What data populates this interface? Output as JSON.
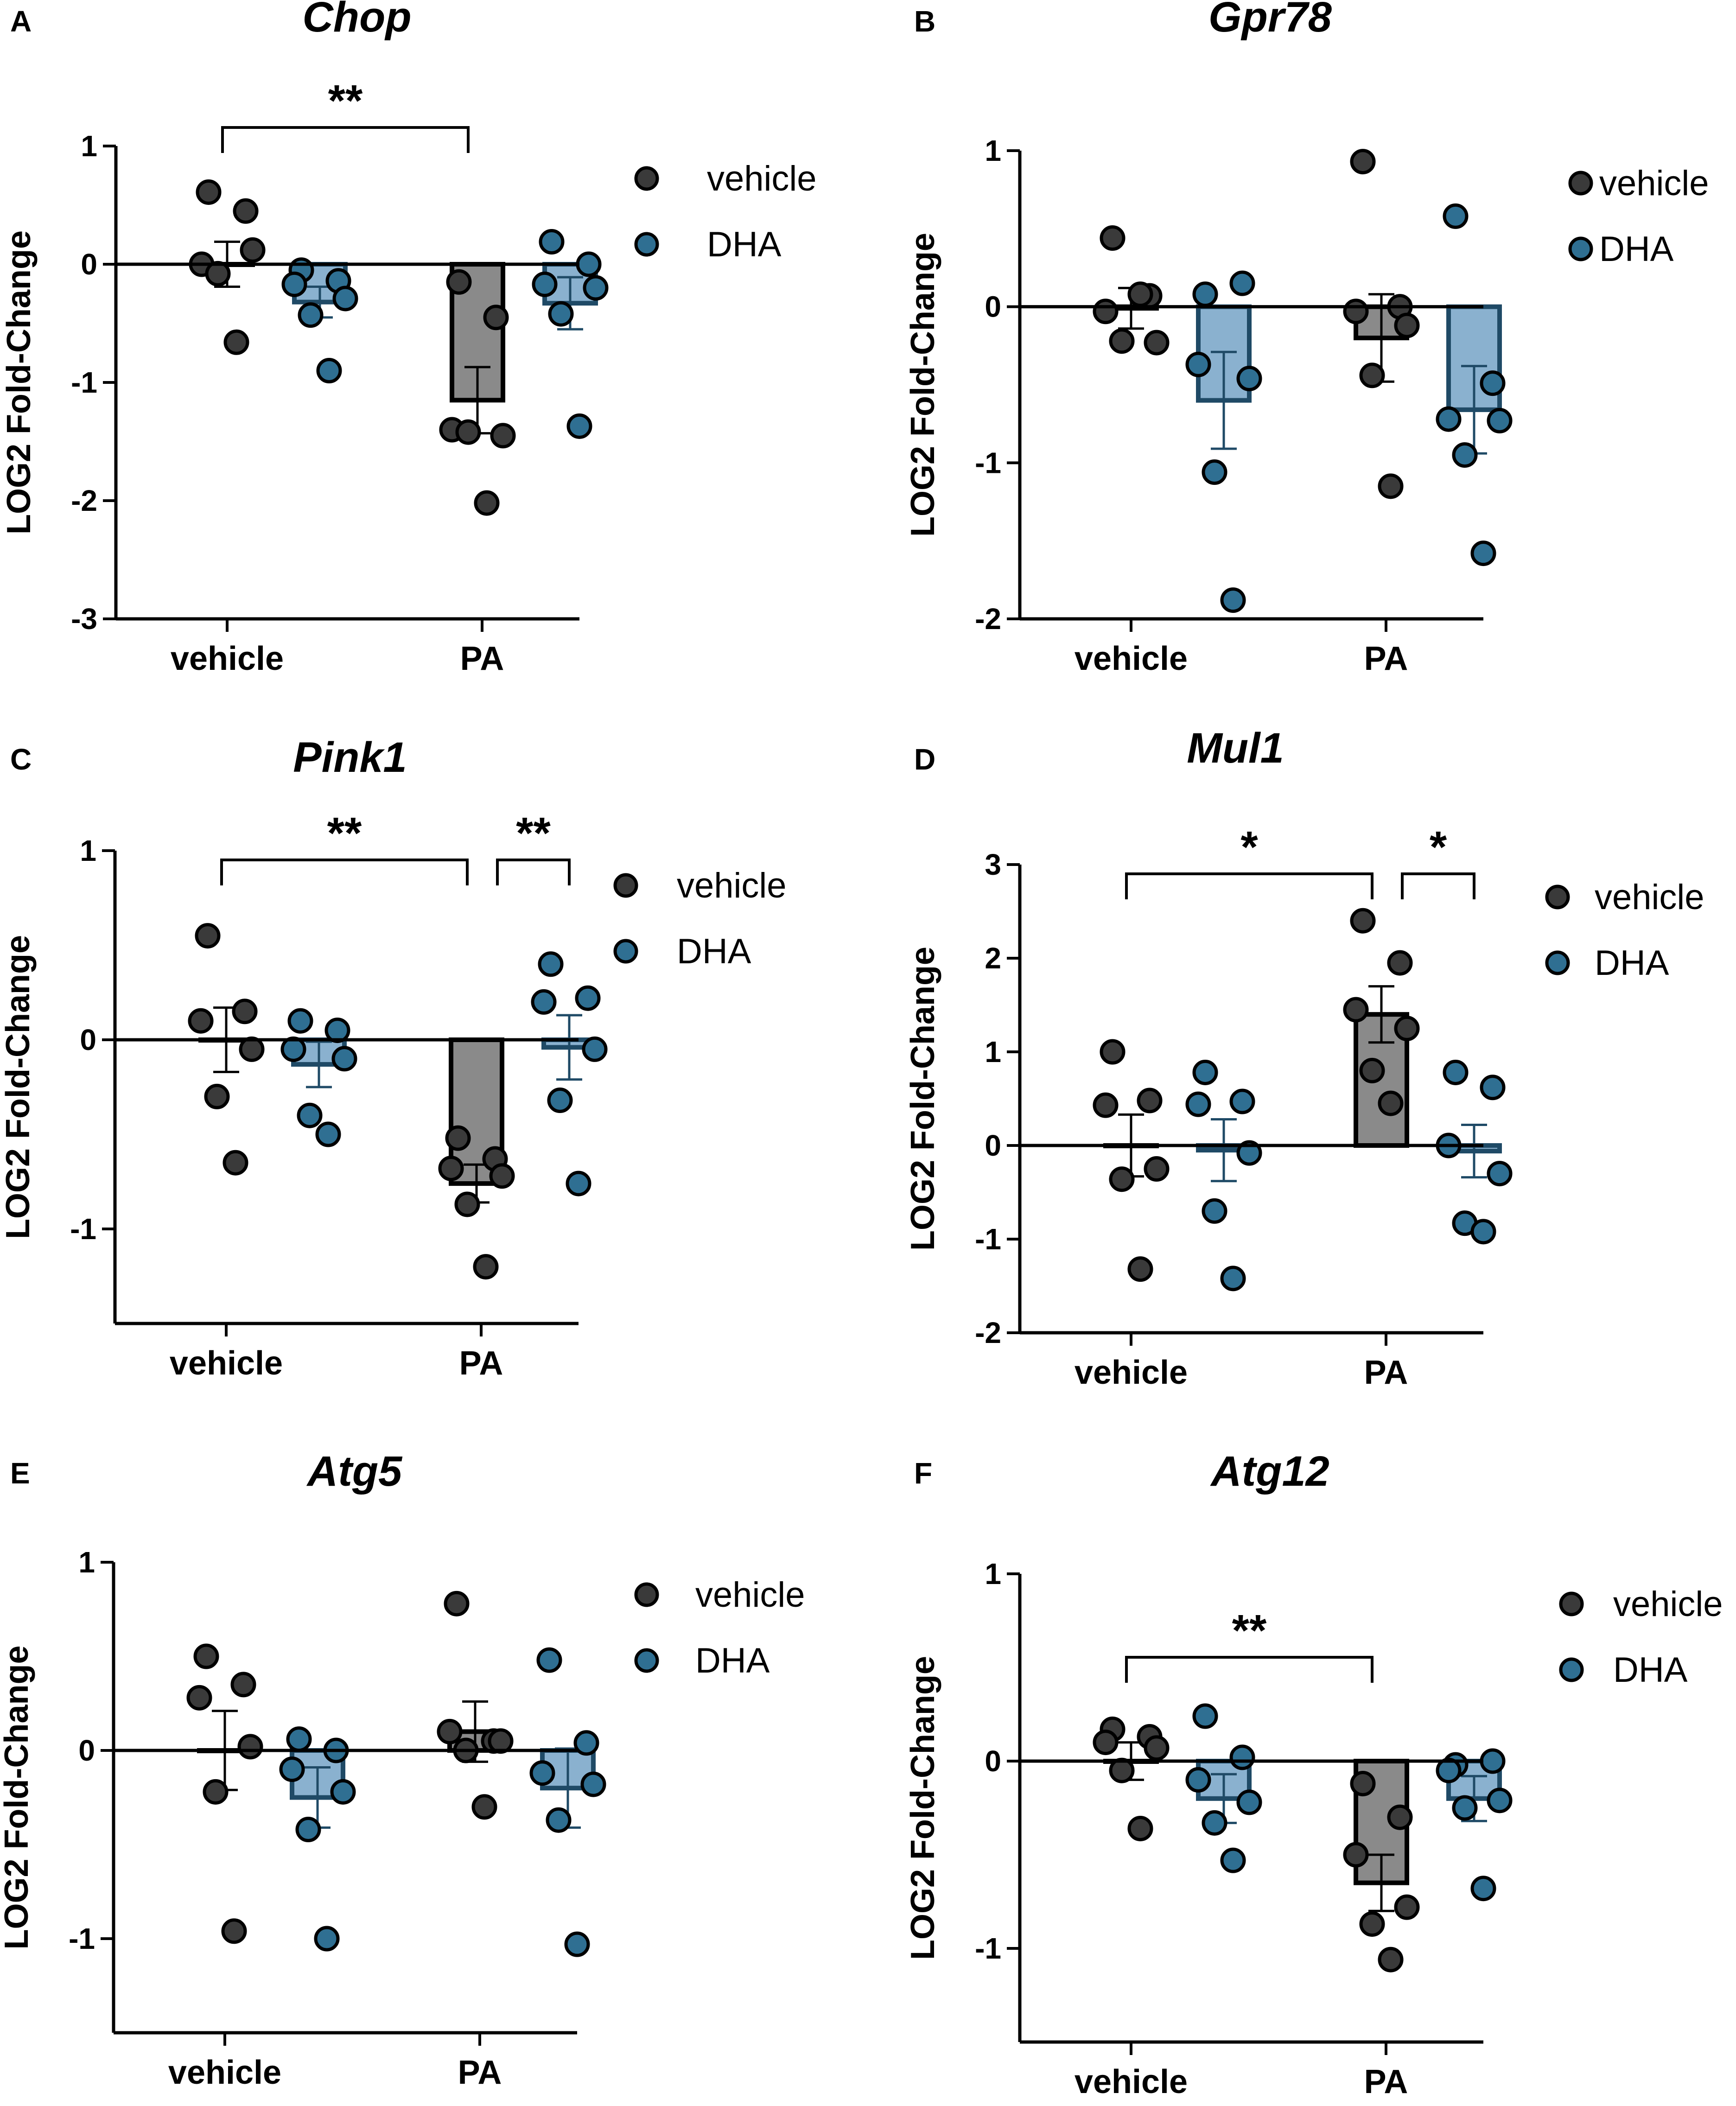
{
  "chart_data": [
    {
      "panel": "A",
      "title": "Chop",
      "type": "bar",
      "ylabel": "LOG2 Fold-Change",
      "ylim": [
        -3,
        1
      ],
      "ticks": [
        1,
        0,
        -1,
        -2,
        -3
      ],
      "categories": [
        "vehicle",
        "PA"
      ],
      "legend": [
        "vehicle",
        "DHA"
      ],
      "groups": [
        {
          "category": "vehicle",
          "treatment": "vehicle",
          "mean": 0.0,
          "sem": 0.19,
          "points": [
            0.61,
            0.45,
            0.0,
            0.12,
            -0.08,
            -0.66
          ]
        },
        {
          "category": "vehicle",
          "treatment": "DHA",
          "mean": -0.32,
          "sem": 0.13,
          "points": [
            -0.05,
            -0.14,
            -0.17,
            -0.29,
            -0.43,
            -0.9
          ]
        },
        {
          "category": "PA",
          "treatment": "vehicle",
          "mean": -1.15,
          "sem": 0.28,
          "points": [
            -0.15,
            -0.45,
            -1.4,
            -1.45,
            -1.42,
            -2.02
          ]
        },
        {
          "category": "PA",
          "treatment": "DHA",
          "mean": -0.33,
          "sem": 0.22,
          "points": [
            0.19,
            0.0,
            -0.17,
            -0.2,
            -0.42,
            -1.37
          ]
        }
      ],
      "significance": [
        {
          "label": "**",
          "from": 0,
          "to": 2
        }
      ]
    },
    {
      "panel": "B",
      "title": "Gpr78",
      "type": "bar",
      "ylabel": "LOG2 Fold-Change",
      "ylim": [
        -2,
        1
      ],
      "ticks": [
        1,
        0,
        -1,
        -2
      ],
      "categories": [
        "vehicle",
        "PA"
      ],
      "legend": [
        "vehicle",
        "DHA"
      ],
      "groups": [
        {
          "category": "vehicle",
          "treatment": "vehicle",
          "mean": -0.01,
          "sem": 0.13,
          "points": [
            0.44,
            0.07,
            -0.03,
            -0.23,
            -0.22,
            0.08
          ]
        },
        {
          "category": "vehicle",
          "treatment": "DHA",
          "mean": -0.6,
          "sem": 0.31,
          "points": [
            0.08,
            0.15,
            -0.37,
            -0.46,
            -1.06,
            -1.88
          ]
        },
        {
          "category": "PA",
          "treatment": "vehicle",
          "mean": -0.2,
          "sem": 0.28,
          "points": [
            0.93,
            0.0,
            -0.03,
            -0.12,
            -0.44,
            -1.15
          ]
        },
        {
          "category": "PA",
          "treatment": "DHA",
          "mean": -0.66,
          "sem": 0.28,
          "points": [
            0.58,
            -0.49,
            -0.72,
            -0.73,
            -0.95,
            -1.58
          ]
        }
      ],
      "significance": []
    },
    {
      "panel": "C",
      "title": "Pink1",
      "type": "bar",
      "ylabel": "LOG2 Fold-Change",
      "ylim": [
        -1.5,
        1
      ],
      "ticks": [
        1,
        0,
        -1
      ],
      "categories": [
        "vehicle",
        "PA"
      ],
      "legend": [
        "vehicle",
        "DHA"
      ],
      "groups": [
        {
          "category": "vehicle",
          "treatment": "vehicle",
          "mean": 0.0,
          "sem": 0.17,
          "points": [
            0.55,
            0.15,
            0.1,
            -0.05,
            -0.3,
            -0.65
          ]
        },
        {
          "category": "vehicle",
          "treatment": "DHA",
          "mean": -0.13,
          "sem": 0.12,
          "points": [
            0.1,
            0.05,
            -0.05,
            -0.1,
            -0.4,
            -0.5
          ]
        },
        {
          "category": "PA",
          "treatment": "vehicle",
          "mean": -0.76,
          "sem": 0.1,
          "points": [
            -0.52,
            -0.63,
            -0.68,
            -0.72,
            -0.87,
            -1.2
          ]
        },
        {
          "category": "PA",
          "treatment": "DHA",
          "mean": -0.04,
          "sem": 0.17,
          "points": [
            0.4,
            0.22,
            0.2,
            -0.05,
            -0.32,
            -0.76
          ]
        }
      ],
      "significance": [
        {
          "label": "**",
          "from": 0,
          "to": 2
        },
        {
          "label": "**",
          "from": 2,
          "to": 3
        }
      ]
    },
    {
      "panel": "D",
      "title": "Mul1",
      "type": "bar",
      "ylabel": "LOG2 Fold-Change",
      "ylim": [
        -2,
        3
      ],
      "ticks": [
        3,
        2,
        1,
        0,
        -1,
        -2
      ],
      "categories": [
        "vehicle",
        "PA"
      ],
      "legend": [
        "vehicle",
        "DHA"
      ],
      "groups": [
        {
          "category": "vehicle",
          "treatment": "vehicle",
          "mean": 0.0,
          "sem": 0.33,
          "points": [
            1.0,
            0.48,
            0.43,
            -0.25,
            -0.36,
            -1.32
          ]
        },
        {
          "category": "vehicle",
          "treatment": "DHA",
          "mean": -0.05,
          "sem": 0.33,
          "points": [
            0.78,
            0.47,
            0.44,
            -0.08,
            -0.7,
            -1.42
          ]
        },
        {
          "category": "PA",
          "treatment": "vehicle",
          "mean": 1.4,
          "sem": 0.3,
          "points": [
            2.4,
            1.95,
            1.45,
            1.25,
            0.8,
            0.45
          ]
        },
        {
          "category": "PA",
          "treatment": "DHA",
          "mean": -0.06,
          "sem": 0.28,
          "points": [
            0.78,
            0.62,
            0.0,
            -0.3,
            -0.83,
            -0.92
          ]
        }
      ],
      "significance": [
        {
          "label": "*",
          "from": 0,
          "to": 2
        },
        {
          "label": "*",
          "from": 2,
          "to": 3
        }
      ]
    },
    {
      "panel": "E",
      "title": "Atg5",
      "type": "bar",
      "ylabel": "LOG2 Fold-Change",
      "ylim": [
        -1.5,
        1
      ],
      "ticks": [
        1,
        0,
        -1
      ],
      "categories": [
        "vehicle",
        "PA"
      ],
      "legend": [
        "vehicle",
        "DHA"
      ],
      "groups": [
        {
          "category": "vehicle",
          "treatment": "vehicle",
          "mean": 0.0,
          "sem": 0.21,
          "points": [
            0.5,
            0.35,
            0.28,
            0.02,
            -0.22,
            -0.96
          ]
        },
        {
          "category": "vehicle",
          "treatment": "DHA",
          "mean": -0.25,
          "sem": 0.16,
          "points": [
            0.06,
            0.0,
            -0.1,
            -0.22,
            -0.42,
            -1.0
          ]
        },
        {
          "category": "PA",
          "treatment": "vehicle",
          "mean": 0.1,
          "sem": 0.16,
          "points": [
            0.78,
            0.05,
            0.1,
            0.05,
            0.0,
            -0.3
          ]
        },
        {
          "category": "PA",
          "treatment": "DHA",
          "mean": -0.2,
          "sem": 0.21,
          "points": [
            0.48,
            0.04,
            -0.12,
            -0.18,
            -0.37,
            -1.03
          ]
        }
      ],
      "significance": []
    },
    {
      "panel": "F",
      "title": "Atg12",
      "type": "bar",
      "ylabel": "LOG2 Fold-Change",
      "ylim": [
        -1.5,
        1
      ],
      "ticks": [
        1,
        0,
        -1
      ],
      "categories": [
        "vehicle",
        "PA"
      ],
      "legend": [
        "vehicle",
        "DHA"
      ],
      "groups": [
        {
          "category": "vehicle",
          "treatment": "vehicle",
          "mean": 0.0,
          "sem": 0.1,
          "points": [
            0.17,
            0.13,
            0.1,
            0.07,
            -0.05,
            -0.36
          ]
        },
        {
          "category": "vehicle",
          "treatment": "DHA",
          "mean": -0.2,
          "sem": 0.13,
          "points": [
            0.24,
            0.02,
            -0.1,
            -0.22,
            -0.33,
            -0.53
          ]
        },
        {
          "category": "PA",
          "treatment": "vehicle",
          "mean": -0.65,
          "sem": 0.15,
          "points": [
            -0.12,
            -0.3,
            -0.5,
            -0.78,
            -0.87,
            -1.06
          ]
        },
        {
          "category": "PA",
          "treatment": "DHA",
          "mean": -0.2,
          "sem": 0.12,
          "points": [
            -0.02,
            0.0,
            -0.05,
            -0.21,
            -0.25,
            -0.68
          ]
        }
      ],
      "significance": [
        {
          "label": "**",
          "from": 0,
          "to": 2
        }
      ]
    }
  ],
  "colors": {
    "vehicle_bar": "#8a8a8a",
    "vehicle_dot": "#3a3a3a",
    "dha_bar": "#8ab1cf",
    "dha_dot": "#2f6f92",
    "dha_stroke": "#1f4a66",
    "axis": "#000000"
  }
}
